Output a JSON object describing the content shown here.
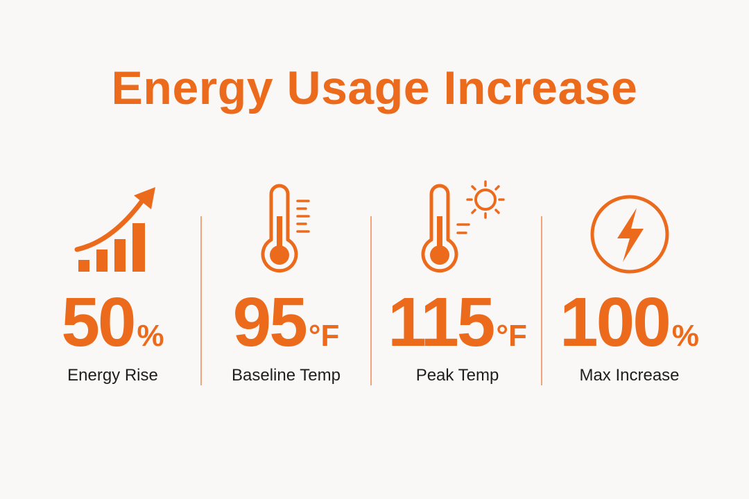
{
  "title": "Energy Usage Increase",
  "accent_color": "#ec6a1c",
  "stats": [
    {
      "icon": "rising-bar-chart-icon",
      "value": "50",
      "unit": "%",
      "label": "Energy Rise"
    },
    {
      "icon": "thermometer-icon",
      "value": "95",
      "unit": "°F",
      "label": "Baseline Temp"
    },
    {
      "icon": "thermometer-sun-icon",
      "value": "115",
      "unit": "°F",
      "label": "Peak Temp"
    },
    {
      "icon": "lightning-bolt-icon",
      "value": "100",
      "unit": "%",
      "label": "Max Increase"
    }
  ]
}
